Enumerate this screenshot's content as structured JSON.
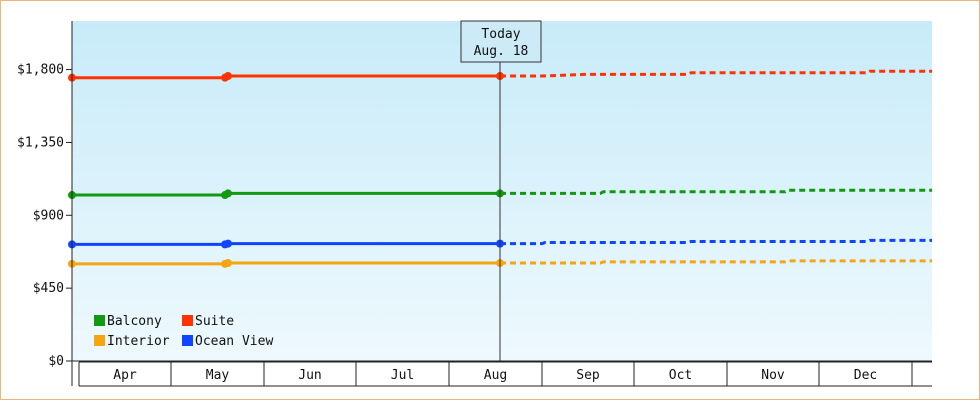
{
  "chart_data": {
    "type": "line",
    "y_ticks": [
      "$0",
      "$450",
      "$900",
      "$1,350",
      "$1,800"
    ],
    "ylim": [
      0,
      2100
    ],
    "months": [
      "Apr",
      "May",
      "Jun",
      "Jul",
      "Aug",
      "Sep",
      "Oct",
      "Nov",
      "Dec"
    ],
    "today_marker": {
      "line1": "Today",
      "line2": "Aug. 18"
    },
    "grid": false,
    "legend_placement": "bottom-left",
    "background_gradient": [
      "#c8ebf9",
      "#eef9fd"
    ],
    "series": [
      {
        "name": "Suite",
        "color": "#ff3300",
        "actual": [
          {
            "x": "Apr 1",
            "y": 1750
          },
          {
            "x": "May 19",
            "y": 1750
          },
          {
            "x": "May 20",
            "y": 1760
          },
          {
            "x": "Aug 18",
            "y": 1760
          }
        ],
        "forecast": [
          {
            "x": "Aug 18",
            "y": 1760
          },
          {
            "x": "Sep 1",
            "y": 1760
          },
          {
            "x": "Sep 15",
            "y": 1770
          },
          {
            "x": "Oct 19",
            "y": 1770
          },
          {
            "x": "Oct 20",
            "y": 1780
          },
          {
            "x": "Dec 17",
            "y": 1780
          },
          {
            "x": "Dec 18",
            "y": 1790
          },
          {
            "x": "Dec 31",
            "y": 1790
          }
        ]
      },
      {
        "name": "Balcony",
        "color": "#119911",
        "actual": [
          {
            "x": "Apr 1",
            "y": 1025
          },
          {
            "x": "May 19",
            "y": 1025
          },
          {
            "x": "May 20",
            "y": 1035
          },
          {
            "x": "Aug 18",
            "y": 1035
          }
        ],
        "forecast": [
          {
            "x": "Aug 18",
            "y": 1035
          },
          {
            "x": "Sep 20",
            "y": 1035
          },
          {
            "x": "Sep 21",
            "y": 1045
          },
          {
            "x": "Nov 20",
            "y": 1045
          },
          {
            "x": "Nov 21",
            "y": 1055
          },
          {
            "x": "Dec 31",
            "y": 1055
          }
        ]
      },
      {
        "name": "Ocean View",
        "color": "#1144ff",
        "actual": [
          {
            "x": "Apr 1",
            "y": 720
          },
          {
            "x": "May 19",
            "y": 720
          },
          {
            "x": "May 20",
            "y": 725
          },
          {
            "x": "Aug 18",
            "y": 725
          }
        ],
        "forecast": [
          {
            "x": "Aug 18",
            "y": 725
          },
          {
            "x": "Sep 1",
            "y": 725
          },
          {
            "x": "Sep 2",
            "y": 732
          },
          {
            "x": "Oct 19",
            "y": 732
          },
          {
            "x": "Oct 20",
            "y": 738
          },
          {
            "x": "Dec 17",
            "y": 738
          },
          {
            "x": "Dec 18",
            "y": 745
          },
          {
            "x": "Dec 31",
            "y": 745
          }
        ]
      },
      {
        "name": "Interior",
        "color": "#f5a511",
        "actual": [
          {
            "x": "Apr 1",
            "y": 600
          },
          {
            "x": "May 19",
            "y": 600
          },
          {
            "x": "May 20",
            "y": 605
          },
          {
            "x": "Aug 18",
            "y": 605
          }
        ],
        "forecast": [
          {
            "x": "Aug 18",
            "y": 605
          },
          {
            "x": "Sep 20",
            "y": 605
          },
          {
            "x": "Sep 21",
            "y": 612
          },
          {
            "x": "Nov 20",
            "y": 612
          },
          {
            "x": "Nov 21",
            "y": 618
          },
          {
            "x": "Dec 31",
            "y": 618
          }
        ]
      }
    ],
    "markers": [
      {
        "series": "Suite",
        "points": [
          "Apr 1",
          "May 19",
          "May 20",
          "Aug 18"
        ]
      },
      {
        "series": "Balcony",
        "points": [
          "Apr 1",
          "May 19",
          "May 20",
          "Aug 18"
        ]
      },
      {
        "series": "Ocean View",
        "points": [
          "Apr 1",
          "May 19",
          "May 20",
          "Aug 18"
        ]
      },
      {
        "series": "Interior",
        "points": [
          "Apr 1",
          "May 19",
          "May 20",
          "Aug 18"
        ]
      }
    ],
    "legend": [
      {
        "name": "Balcony",
        "color": "#119911"
      },
      {
        "name": "Suite",
        "color": "#ff3300"
      },
      {
        "name": "Interior",
        "color": "#f5a511"
      },
      {
        "name": "Ocean View",
        "color": "#1144ff"
      }
    ]
  }
}
